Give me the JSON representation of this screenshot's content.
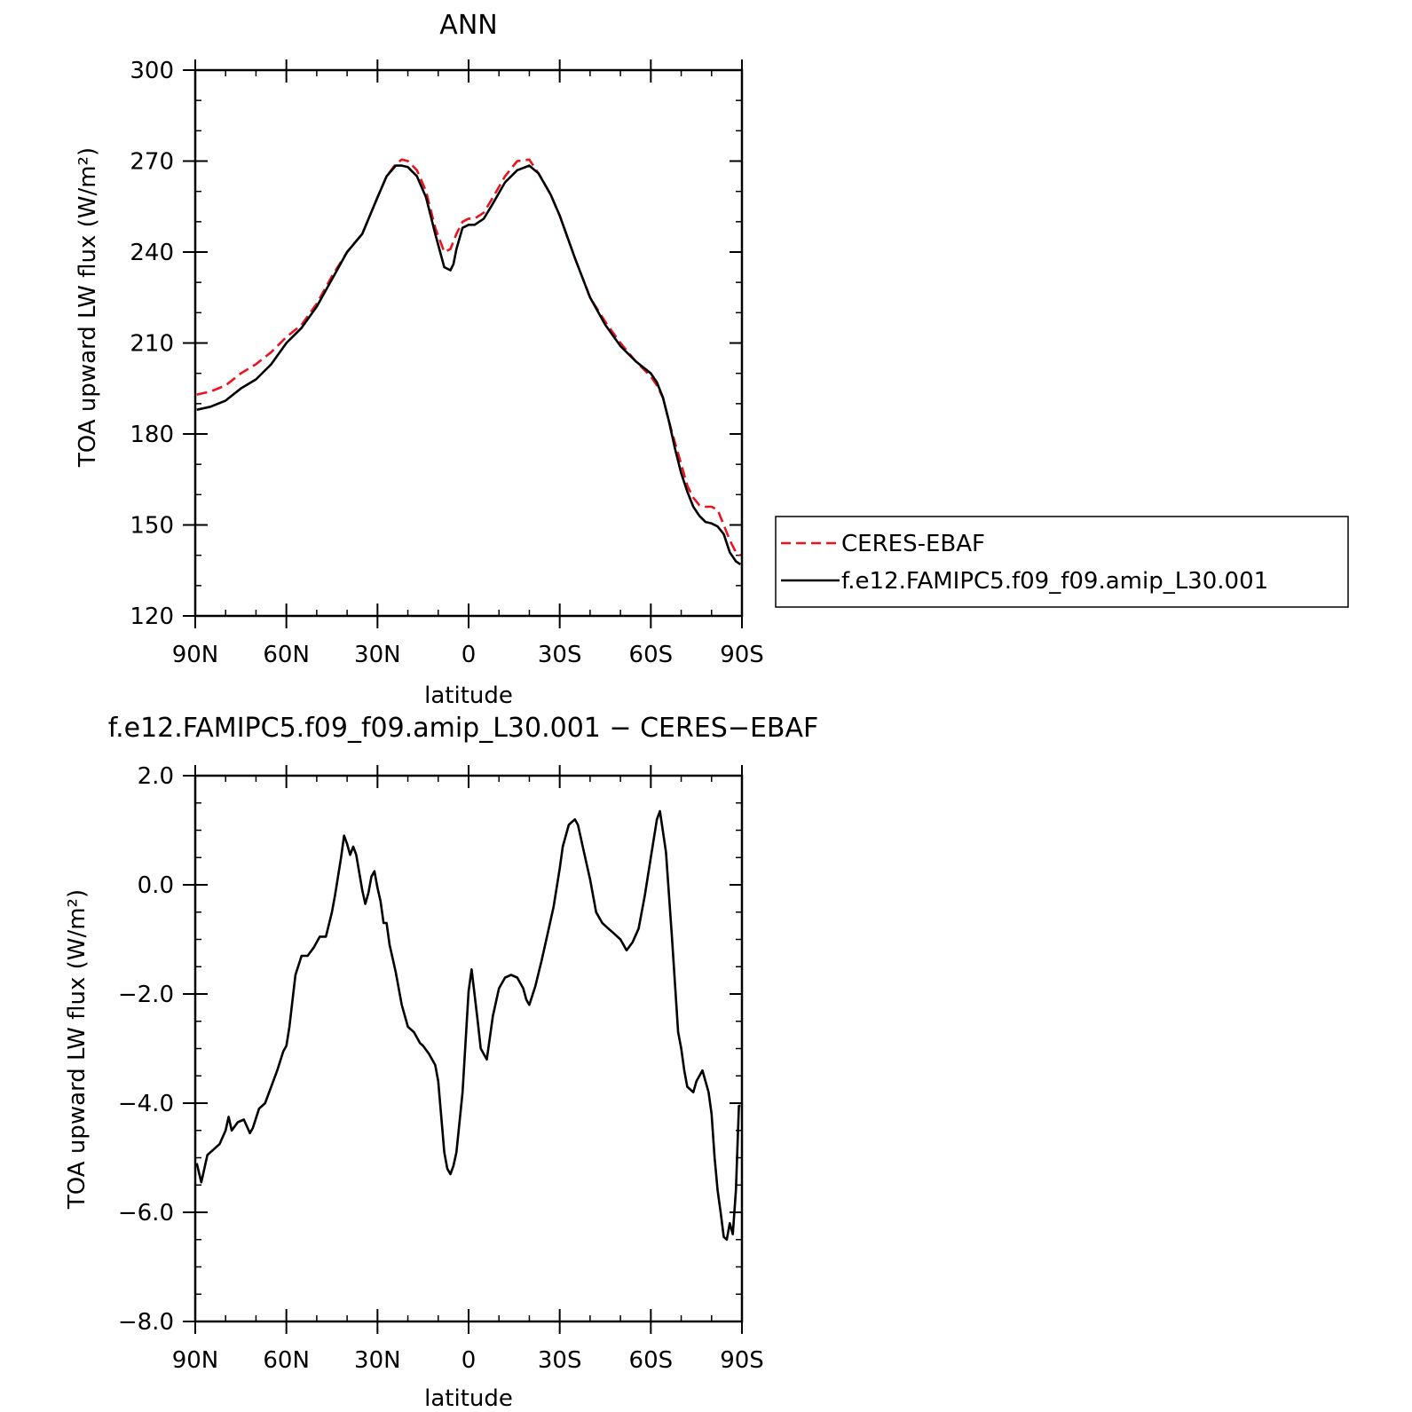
{
  "colors": {
    "obs": "#e8141e",
    "model": "#000000",
    "frame": "#000000"
  },
  "chart_data": [
    {
      "type": "line",
      "title": "ANN",
      "xlabel": "latitude",
      "ylabel": "TOA upward LW flux (W/m²)",
      "xlim": [
        90,
        -90
      ],
      "ylim": [
        120,
        300
      ],
      "xticks": [
        {
          "v": 90,
          "label": "90N"
        },
        {
          "v": 60,
          "label": "60N"
        },
        {
          "v": 30,
          "label": "30N"
        },
        {
          "v": 0,
          "label": "0"
        },
        {
          "v": -30,
          "label": "30S"
        },
        {
          "v": -60,
          "label": "60S"
        },
        {
          "v": -90,
          "label": "90S"
        }
      ],
      "yticks": [
        {
          "v": 300,
          "label": "300"
        },
        {
          "v": 270,
          "label": "270"
        },
        {
          "v": 240,
          "label": "240"
        },
        {
          "v": 210,
          "label": "210"
        },
        {
          "v": 180,
          "label": "180"
        },
        {
          "v": 150,
          "label": "150"
        },
        {
          "v": 120,
          "label": "120"
        }
      ],
      "legend": {
        "position": "right"
      },
      "series": [
        {
          "name": "CERES-EBAF",
          "style": "dashed",
          "color": "#e8141e",
          "x": [
            89.5,
            85,
            80,
            75,
            70,
            65,
            60,
            55,
            50,
            45,
            40,
            35,
            30,
            27,
            24,
            22,
            20,
            17,
            14,
            11,
            8,
            6,
            4,
            2,
            0,
            -2,
            -5,
            -8,
            -12,
            -16,
            -20,
            -23,
            -27,
            -30,
            -35,
            -40,
            -45,
            -50,
            -55,
            -60,
            -62,
            -64,
            -66,
            -68,
            -70,
            -72,
            -74,
            -76,
            -78,
            -80,
            -82,
            -84,
            -86,
            -88,
            -89.5
          ],
          "y": [
            193,
            194,
            196,
            200,
            203,
            207,
            212,
            216,
            223,
            232,
            240,
            246,
            258,
            265,
            269,
            270.5,
            270,
            267,
            260,
            248,
            240,
            241,
            246,
            250,
            251,
            251,
            253,
            258,
            265,
            270,
            270.5,
            266,
            259,
            252,
            238,
            225,
            217,
            210,
            204,
            199,
            196,
            192,
            184,
            177,
            170,
            163,
            159,
            156.5,
            156,
            156,
            155,
            150,
            145,
            141,
            140
          ]
        },
        {
          "name": "f.e12.FAMIPC5.f09_f09.amip_L30.001",
          "style": "solid",
          "color": "#000000",
          "x": [
            89.5,
            85,
            80,
            75,
            70,
            65,
            60,
            55,
            50,
            45,
            40,
            35,
            30,
            27,
            24,
            22,
            20,
            17,
            14,
            11,
            8,
            6,
            5,
            4,
            2,
            0,
            -2,
            -5,
            -8,
            -12,
            -16,
            -20,
            -23,
            -27,
            -30,
            -35,
            -40,
            -45,
            -50,
            -55,
            -60,
            -62,
            -64,
            -66,
            -68,
            -70,
            -72,
            -74,
            -76,
            -78,
            -80,
            -82,
            -84,
            -86,
            -88,
            -89.5
          ],
          "y": [
            188,
            189,
            191,
            195,
            198,
            203,
            210,
            215,
            222,
            231,
            240,
            246,
            258,
            265,
            268.5,
            268.5,
            268,
            265,
            258,
            246,
            235,
            234,
            236,
            241,
            248,
            249,
            249,
            251,
            256,
            263,
            267,
            268.5,
            266,
            259,
            252,
            238,
            225,
            216,
            209,
            204,
            200,
            197,
            192,
            184,
            175,
            167,
            161,
            156,
            153,
            151,
            150.5,
            149.5,
            147,
            141,
            138,
            137
          ]
        }
      ]
    },
    {
      "type": "line",
      "title": "f.e12.FAMIPC5.f09_f09.amip_L30.001 − CERES−EBAF",
      "xlabel": "latitude",
      "ylabel": "TOA upward LW flux (W/m²)",
      "xlim": [
        90,
        -90
      ],
      "ylim": [
        -8,
        2
      ],
      "xticks": [
        {
          "v": 90,
          "label": "90N"
        },
        {
          "v": 60,
          "label": "60N"
        },
        {
          "v": 30,
          "label": "30N"
        },
        {
          "v": 0,
          "label": "0"
        },
        {
          "v": -30,
          "label": "30S"
        },
        {
          "v": -60,
          "label": "60S"
        },
        {
          "v": -90,
          "label": "90S"
        }
      ],
      "yticks": [
        {
          "v": 2,
          "label": "2.0"
        },
        {
          "v": 0,
          "label": "0.0"
        },
        {
          "v": -2,
          "label": "−2.0"
        },
        {
          "v": -4,
          "label": "−4.0"
        },
        {
          "v": -6,
          "label": "−6.0"
        },
        {
          "v": -8,
          "label": "−8.0"
        }
      ],
      "series": [
        {
          "name": "",
          "style": "solid",
          "color": "#000000",
          "x": [
            89.5,
            88,
            86,
            84,
            82,
            80,
            79,
            78,
            76,
            74,
            72,
            71,
            69,
            67,
            65,
            63,
            61,
            60,
            59,
            57,
            55,
            53,
            51,
            49,
            47,
            45,
            44,
            42,
            41,
            40,
            39,
            38,
            37,
            35,
            34,
            33,
            32,
            31,
            30,
            29,
            28,
            27,
            26,
            24,
            22,
            20,
            18,
            16,
            15,
            13,
            11,
            10,
            8,
            7,
            6,
            5,
            4,
            2,
            0,
            -1,
            -3,
            -4,
            -6,
            -8,
            -10,
            -12,
            -14,
            -16,
            -18,
            -19,
            -20,
            -22,
            -24,
            -26,
            -28,
            -30,
            -31,
            -33,
            -35,
            -36,
            -38,
            -40,
            -42,
            -44,
            -46,
            -48,
            -50,
            -52,
            -54,
            -56,
            -58,
            -60,
            -62,
            -63,
            -65,
            -67,
            -69,
            -70,
            -71,
            -72,
            -74,
            -75,
            -76,
            -77,
            -79,
            -80,
            -81,
            -82,
            -83,
            -84,
            -85,
            -86,
            -87,
            -88,
            -89,
            -89.5
          ],
          "y": [
            -5.1,
            -5.45,
            -4.95,
            -4.85,
            -4.75,
            -4.5,
            -4.25,
            -4.5,
            -4.35,
            -4.3,
            -4.55,
            -4.45,
            -4.1,
            -4.0,
            -3.7,
            -3.4,
            -3.05,
            -2.95,
            -2.6,
            -1.65,
            -1.3,
            -1.3,
            -1.15,
            -0.95,
            -0.95,
            -0.5,
            -0.2,
            0.5,
            0.9,
            0.75,
            0.55,
            0.7,
            0.55,
            -0.1,
            -0.35,
            -0.15,
            0.15,
            0.25,
            -0.05,
            -0.3,
            -0.7,
            -0.7,
            -1.1,
            -1.6,
            -2.2,
            -2.6,
            -2.7,
            -2.9,
            -2.95,
            -3.1,
            -3.3,
            -3.6,
            -4.9,
            -5.2,
            -5.3,
            -5.15,
            -4.9,
            -3.8,
            -1.95,
            -1.55,
            -2.5,
            -3.0,
            -3.2,
            -2.4,
            -1.9,
            -1.7,
            -1.65,
            -1.7,
            -1.9,
            -2.1,
            -2.2,
            -1.85,
            -1.4,
            -0.9,
            -0.4,
            0.3,
            0.7,
            1.1,
            1.2,
            1.1,
            0.6,
            0.1,
            -0.5,
            -0.7,
            -0.8,
            -0.9,
            -1.0,
            -1.2,
            -1.05,
            -0.8,
            -0.2,
            0.5,
            1.2,
            1.35,
            0.6,
            -1.0,
            -2.7,
            -3.0,
            -3.4,
            -3.7,
            -3.8,
            -3.6,
            -3.5,
            -3.4,
            -3.8,
            -4.2,
            -5.0,
            -5.6,
            -6.0,
            -6.45,
            -6.5,
            -6.2,
            -6.4,
            -5.6,
            -4.05,
            -4.05
          ]
        }
      ]
    }
  ]
}
